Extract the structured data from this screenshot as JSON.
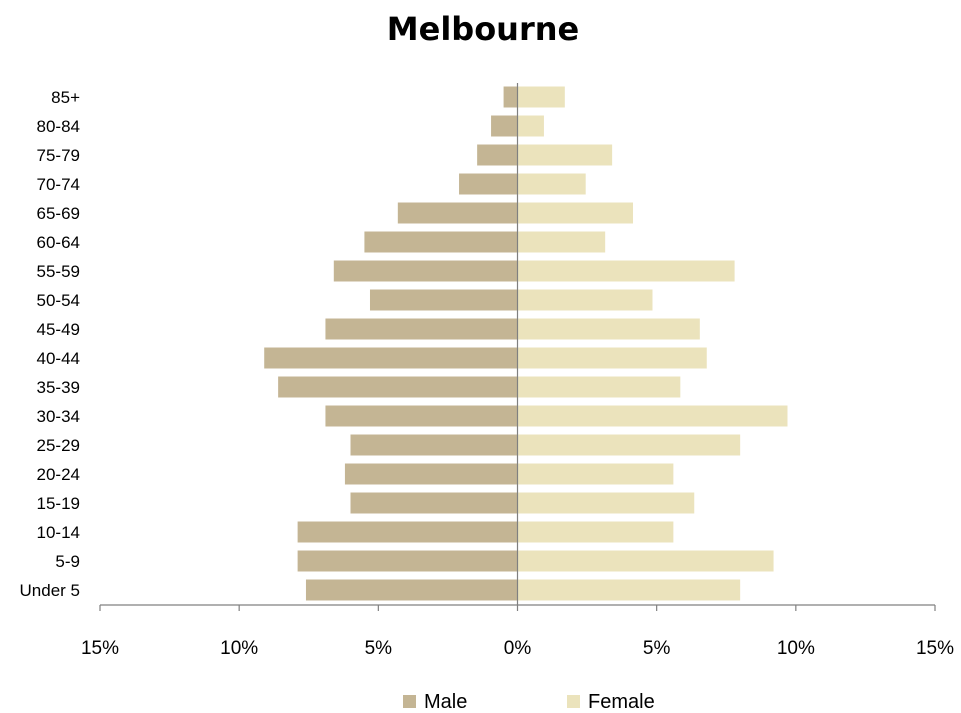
{
  "chart_data": {
    "type": "bar",
    "orientation": "horizontal",
    "title": "Melbourne",
    "categories": [
      "Under 5",
      "5-9",
      "10-14",
      "15-19",
      "20-24",
      "25-29",
      "30-34",
      "35-39",
      "40-44",
      "45-49",
      "50-54",
      "55-59",
      "60-64",
      "65-69",
      "70-74",
      "75-79",
      "80-84",
      "85+"
    ],
    "series": [
      {
        "name": "Male",
        "color": "#c4b594",
        "values": [
          7.6,
          7.9,
          7.9,
          6.0,
          6.2,
          6.0,
          6.9,
          8.6,
          9.1,
          6.9,
          5.3,
          6.6,
          5.5,
          4.3,
          2.1,
          1.45,
          0.95,
          0.5
        ]
      },
      {
        "name": "Female",
        "color": "#ebe3bc",
        "values": [
          8.0,
          9.2,
          5.6,
          6.35,
          5.6,
          8.0,
          9.7,
          5.85,
          6.8,
          6.55,
          4.85,
          7.8,
          3.15,
          4.15,
          2.45,
          3.4,
          0.95,
          1.7
        ]
      }
    ],
    "xlim": [
      -15,
      15
    ],
    "xticks": [
      -15,
      -10,
      -5,
      0,
      5,
      10,
      15
    ],
    "xtick_labels": [
      "15%",
      "10%",
      "5%",
      "0%",
      "5%",
      "10%",
      "15%"
    ],
    "legend_position": "bottom",
    "grid": false
  }
}
